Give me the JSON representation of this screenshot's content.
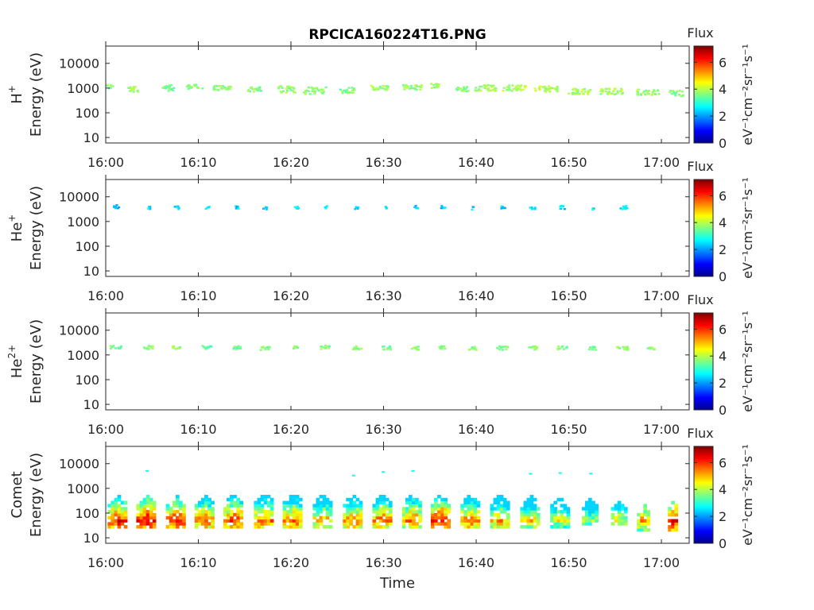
{
  "figure": {
    "title": "RPCICA160224T16.PNG",
    "xlabel": "Time"
  },
  "chart_data": [
    {
      "type": "heatmap",
      "title": "RPCICA160224T16.PNG",
      "species": "H",
      "species_sup": "+",
      "ylabel": "Energy (eV)",
      "x_ticks": [
        "16:00",
        "16:10",
        "16:20",
        "16:30",
        "16:40",
        "16:50",
        "17:00"
      ],
      "xlim": [
        "16:00",
        "17:03"
      ],
      "y_ticks": [
        10,
        100,
        1000,
        10000
      ],
      "ylim": [
        6,
        50000
      ],
      "yscale": "log",
      "colorbar": {
        "label": "Flux",
        "units": "eV⁻¹cm⁻²sr⁻¹s⁻¹",
        "ticks": [
          0,
          2,
          4,
          6
        ],
        "range": [
          0,
          7.2
        ]
      },
      "bursts": [
        {
          "t": 0.2,
          "e": 1200,
          "w": 0.9,
          "s": 0.1,
          "v": 3.6
        },
        {
          "t": 3.0,
          "e": 1000,
          "w": 1.6,
          "s": 0.12,
          "v": 3.8
        },
        {
          "t": 6.5,
          "e": 1100,
          "w": 1.5,
          "s": 0.12,
          "v": 3.5
        },
        {
          "t": 9.5,
          "e": 1200,
          "w": 1.7,
          "s": 0.1,
          "v": 3.7
        },
        {
          "t": 12.5,
          "e": 1100,
          "w": 2.0,
          "s": 0.1,
          "v": 3.6
        },
        {
          "t": 16.0,
          "e": 1000,
          "w": 1.6,
          "s": 0.12,
          "v": 3.6
        },
        {
          "t": 19.5,
          "e": 950,
          "w": 2.0,
          "s": 0.14,
          "v": 3.8
        },
        {
          "t": 22.5,
          "e": 850,
          "w": 2.5,
          "s": 0.15,
          "v": 3.7
        },
        {
          "t": 26.0,
          "e": 900,
          "w": 1.6,
          "s": 0.12,
          "v": 3.6
        },
        {
          "t": 29.5,
          "e": 1100,
          "w": 2.0,
          "s": 0.12,
          "v": 3.8
        },
        {
          "t": 33.0,
          "e": 1100,
          "w": 2.0,
          "s": 0.12,
          "v": 3.7
        },
        {
          "t": 35.5,
          "e": 1300,
          "w": 1.0,
          "s": 0.1,
          "v": 3.8
        },
        {
          "t": 38.5,
          "e": 1000,
          "w": 1.5,
          "s": 0.1,
          "v": 3.7
        },
        {
          "t": 41.0,
          "e": 1100,
          "w": 2.5,
          "s": 0.12,
          "v": 3.9
        },
        {
          "t": 44.0,
          "e": 1100,
          "w": 2.5,
          "s": 0.12,
          "v": 3.9
        },
        {
          "t": 47.5,
          "e": 1000,
          "w": 2.6,
          "s": 0.12,
          "v": 3.9
        },
        {
          "t": 51.0,
          "e": 800,
          "w": 2.6,
          "s": 0.12,
          "v": 3.9
        },
        {
          "t": 54.5,
          "e": 800,
          "w": 2.6,
          "s": 0.12,
          "v": 3.9
        },
        {
          "t": 58.5,
          "e": 750,
          "w": 2.5,
          "s": 0.12,
          "v": 3.8
        },
        {
          "t": 61.5,
          "e": 650,
          "w": 1.5,
          "s": 0.12,
          "v": 3.6
        }
      ]
    },
    {
      "type": "heatmap",
      "species": "He",
      "species_sup": "+",
      "ylabel": "Energy (eV)",
      "x_ticks": [
        "16:00",
        "16:10",
        "16:20",
        "16:30",
        "16:40",
        "16:50",
        "17:00"
      ],
      "xlim": [
        "16:00",
        "17:03"
      ],
      "y_ticks": [
        10,
        100,
        1000,
        10000
      ],
      "ylim": [
        6,
        50000
      ],
      "yscale": "log",
      "colorbar": {
        "label": "Flux",
        "units": "eV⁻¹cm⁻²sr⁻¹s⁻¹",
        "ticks": [
          0,
          2,
          4,
          6
        ],
        "range": [
          0,
          7.2
        ]
      },
      "bursts": [
        {
          "t": 1.0,
          "e": 4300,
          "w": 0.6,
          "s": 0.07,
          "v": 2.3
        },
        {
          "t": 4.5,
          "e": 4000,
          "w": 0.4,
          "s": 0.07,
          "v": 2.5
        },
        {
          "t": 7.6,
          "e": 4000,
          "w": 0.5,
          "s": 0.07,
          "v": 2.4
        },
        {
          "t": 10.9,
          "e": 4000,
          "w": 0.4,
          "s": 0.07,
          "v": 2.5
        },
        {
          "t": 14.0,
          "e": 4000,
          "w": 0.5,
          "s": 0.07,
          "v": 2.4
        },
        {
          "t": 17.1,
          "e": 3800,
          "w": 0.4,
          "s": 0.06,
          "v": 2.5
        },
        {
          "t": 20.5,
          "e": 4000,
          "w": 0.4,
          "s": 0.06,
          "v": 2.6
        },
        {
          "t": 23.6,
          "e": 4000,
          "w": 0.4,
          "s": 0.06,
          "v": 2.6
        },
        {
          "t": 27.0,
          "e": 3800,
          "w": 0.4,
          "s": 0.06,
          "v": 2.5
        },
        {
          "t": 30.2,
          "e": 4000,
          "w": 0.3,
          "s": 0.06,
          "v": 2.5
        },
        {
          "t": 33.4,
          "e": 4000,
          "w": 0.4,
          "s": 0.07,
          "v": 2.4
        },
        {
          "t": 36.3,
          "e": 4200,
          "w": 0.5,
          "s": 0.07,
          "v": 2.3
        },
        {
          "t": 39.6,
          "e": 3800,
          "w": 0.4,
          "s": 0.06,
          "v": 2.5
        },
        {
          "t": 42.8,
          "e": 4000,
          "w": 0.5,
          "s": 0.07,
          "v": 2.4
        },
        {
          "t": 46.0,
          "e": 4000,
          "w": 0.6,
          "s": 0.07,
          "v": 2.4
        },
        {
          "t": 49.2,
          "e": 4000,
          "w": 0.5,
          "s": 0.07,
          "v": 2.3
        },
        {
          "t": 52.5,
          "e": 3500,
          "w": 0.2,
          "s": 0.05,
          "v": 2.6
        },
        {
          "t": 55.8,
          "e": 4000,
          "w": 0.8,
          "s": 0.07,
          "v": 2.5
        }
      ]
    },
    {
      "type": "heatmap",
      "species": "He",
      "species_sup": "2+",
      "ylabel": "Energy (eV)",
      "x_ticks": [
        "16:00",
        "16:10",
        "16:20",
        "16:30",
        "16:40",
        "16:50",
        "17:00"
      ],
      "xlim": [
        "16:00",
        "17:03"
      ],
      "y_ticks": [
        10,
        100,
        1000,
        10000
      ],
      "ylim": [
        6,
        50000
      ],
      "yscale": "log",
      "colorbar": {
        "label": "Flux",
        "units": "eV⁻¹cm⁻²sr⁻¹s⁻¹",
        "ticks": [
          0,
          2,
          4,
          6
        ],
        "range": [
          0,
          7.2
        ]
      },
      "bursts": [
        {
          "t": 1.0,
          "e": 2200,
          "w": 1.2,
          "s": 0.07,
          "v": 3.6
        },
        {
          "t": 4.5,
          "e": 2200,
          "w": 1.0,
          "s": 0.07,
          "v": 3.6
        },
        {
          "t": 7.6,
          "e": 2200,
          "w": 1.0,
          "s": 0.07,
          "v": 3.7
        },
        {
          "t": 10.8,
          "e": 2200,
          "w": 1.0,
          "s": 0.07,
          "v": 3.5
        },
        {
          "t": 14.0,
          "e": 2200,
          "w": 1.0,
          "s": 0.07,
          "v": 3.5
        },
        {
          "t": 17.1,
          "e": 2000,
          "w": 1.0,
          "s": 0.08,
          "v": 3.6
        },
        {
          "t": 20.4,
          "e": 2200,
          "w": 0.7,
          "s": 0.07,
          "v": 3.6
        },
        {
          "t": 23.6,
          "e": 2200,
          "w": 1.0,
          "s": 0.07,
          "v": 3.6
        },
        {
          "t": 27.0,
          "e": 2100,
          "w": 1.0,
          "s": 0.07,
          "v": 3.6
        },
        {
          "t": 30.2,
          "e": 2100,
          "w": 1.0,
          "s": 0.07,
          "v": 3.6
        },
        {
          "t": 33.3,
          "e": 2000,
          "w": 1.0,
          "s": 0.08,
          "v": 3.7
        },
        {
          "t": 36.4,
          "e": 2200,
          "w": 1.0,
          "s": 0.07,
          "v": 3.7
        },
        {
          "t": 39.5,
          "e": 2000,
          "w": 0.8,
          "s": 0.07,
          "v": 3.6
        },
        {
          "t": 42.7,
          "e": 2100,
          "w": 1.2,
          "s": 0.08,
          "v": 3.6
        },
        {
          "t": 46.0,
          "e": 2100,
          "w": 1.0,
          "s": 0.07,
          "v": 3.7
        },
        {
          "t": 49.2,
          "e": 2100,
          "w": 1.0,
          "s": 0.07,
          "v": 3.6
        },
        {
          "t": 52.4,
          "e": 2000,
          "w": 0.8,
          "s": 0.07,
          "v": 3.6
        },
        {
          "t": 55.7,
          "e": 2000,
          "w": 1.2,
          "s": 0.08,
          "v": 3.7
        },
        {
          "t": 58.8,
          "e": 2100,
          "w": 0.8,
          "s": 0.07,
          "v": 3.7
        }
      ]
    },
    {
      "type": "heatmap",
      "species": "Comet",
      "species_sup": "",
      "ylabel": "Energy (eV)",
      "xlabel": "Time",
      "x_ticks": [
        "16:00",
        "16:10",
        "16:20",
        "16:30",
        "16:40",
        "16:50",
        "17:00"
      ],
      "xlim": [
        "16:00",
        "17:03"
      ],
      "y_ticks": [
        10,
        100,
        1000,
        10000
      ],
      "ylim": [
        6,
        50000
      ],
      "yscale": "log",
      "colorbar": {
        "label": "Flux",
        "units": "eV⁻¹cm⁻²sr⁻¹s⁻¹",
        "ticks": [
          0,
          2,
          4,
          6
        ],
        "range": [
          0,
          7.2
        ]
      },
      "bursts": [
        {
          "t": 1.2,
          "elo": 20,
          "ehi": 450,
          "w": 2.0,
          "peak": 6.4
        },
        {
          "t": 4.3,
          "elo": 20,
          "ehi": 450,
          "w": 2.0,
          "peak": 6.6
        },
        {
          "t": 7.5,
          "elo": 20,
          "ehi": 450,
          "w": 2.0,
          "peak": 6.3
        },
        {
          "t": 10.6,
          "elo": 20,
          "ehi": 450,
          "w": 2.0,
          "peak": 5.8
        },
        {
          "t": 13.7,
          "elo": 20,
          "ehi": 500,
          "w": 2.0,
          "peak": 6.0
        },
        {
          "t": 17.0,
          "elo": 20,
          "ehi": 550,
          "w": 2.0,
          "peak": 5.9
        },
        {
          "t": 20.1,
          "elo": 20,
          "ehi": 550,
          "w": 2.0,
          "peak": 5.8
        },
        {
          "t": 23.3,
          "elo": 20,
          "ehi": 500,
          "w": 1.9,
          "peak": 5.3
        },
        {
          "t": 26.6,
          "elo": 20,
          "ehi": 500,
          "w": 2.0,
          "peak": 5.7
        },
        {
          "t": 29.8,
          "elo": 20,
          "ehi": 500,
          "w": 2.0,
          "peak": 5.8
        },
        {
          "t": 33.0,
          "elo": 20,
          "ehi": 500,
          "w": 2.0,
          "peak": 5.8
        },
        {
          "t": 36.1,
          "elo": 20,
          "ehi": 500,
          "w": 2.0,
          "peak": 6.5
        },
        {
          "t": 39.3,
          "elo": 20,
          "ehi": 500,
          "w": 2.0,
          "peak": 5.7
        },
        {
          "t": 42.5,
          "elo": 20,
          "ehi": 500,
          "w": 2.0,
          "peak": 5.3
        },
        {
          "t": 45.7,
          "elo": 20,
          "ehi": 450,
          "w": 1.9,
          "peak": 5.0
        },
        {
          "t": 48.9,
          "elo": 20,
          "ehi": 400,
          "w": 1.8,
          "peak": 4.5
        },
        {
          "t": 52.2,
          "elo": 25,
          "ehi": 350,
          "w": 1.6,
          "peak": 4.2
        },
        {
          "t": 55.3,
          "elo": 25,
          "ehi": 300,
          "w": 1.5,
          "peak": 4.6
        },
        {
          "t": 58.0,
          "elo": 18,
          "ehi": 200,
          "w": 1.3,
          "peak": 5.3
        },
        {
          "t": 61.2,
          "elo": 15,
          "ehi": 300,
          "w": 1.0,
          "peak": 6.5
        }
      ]
    }
  ]
}
